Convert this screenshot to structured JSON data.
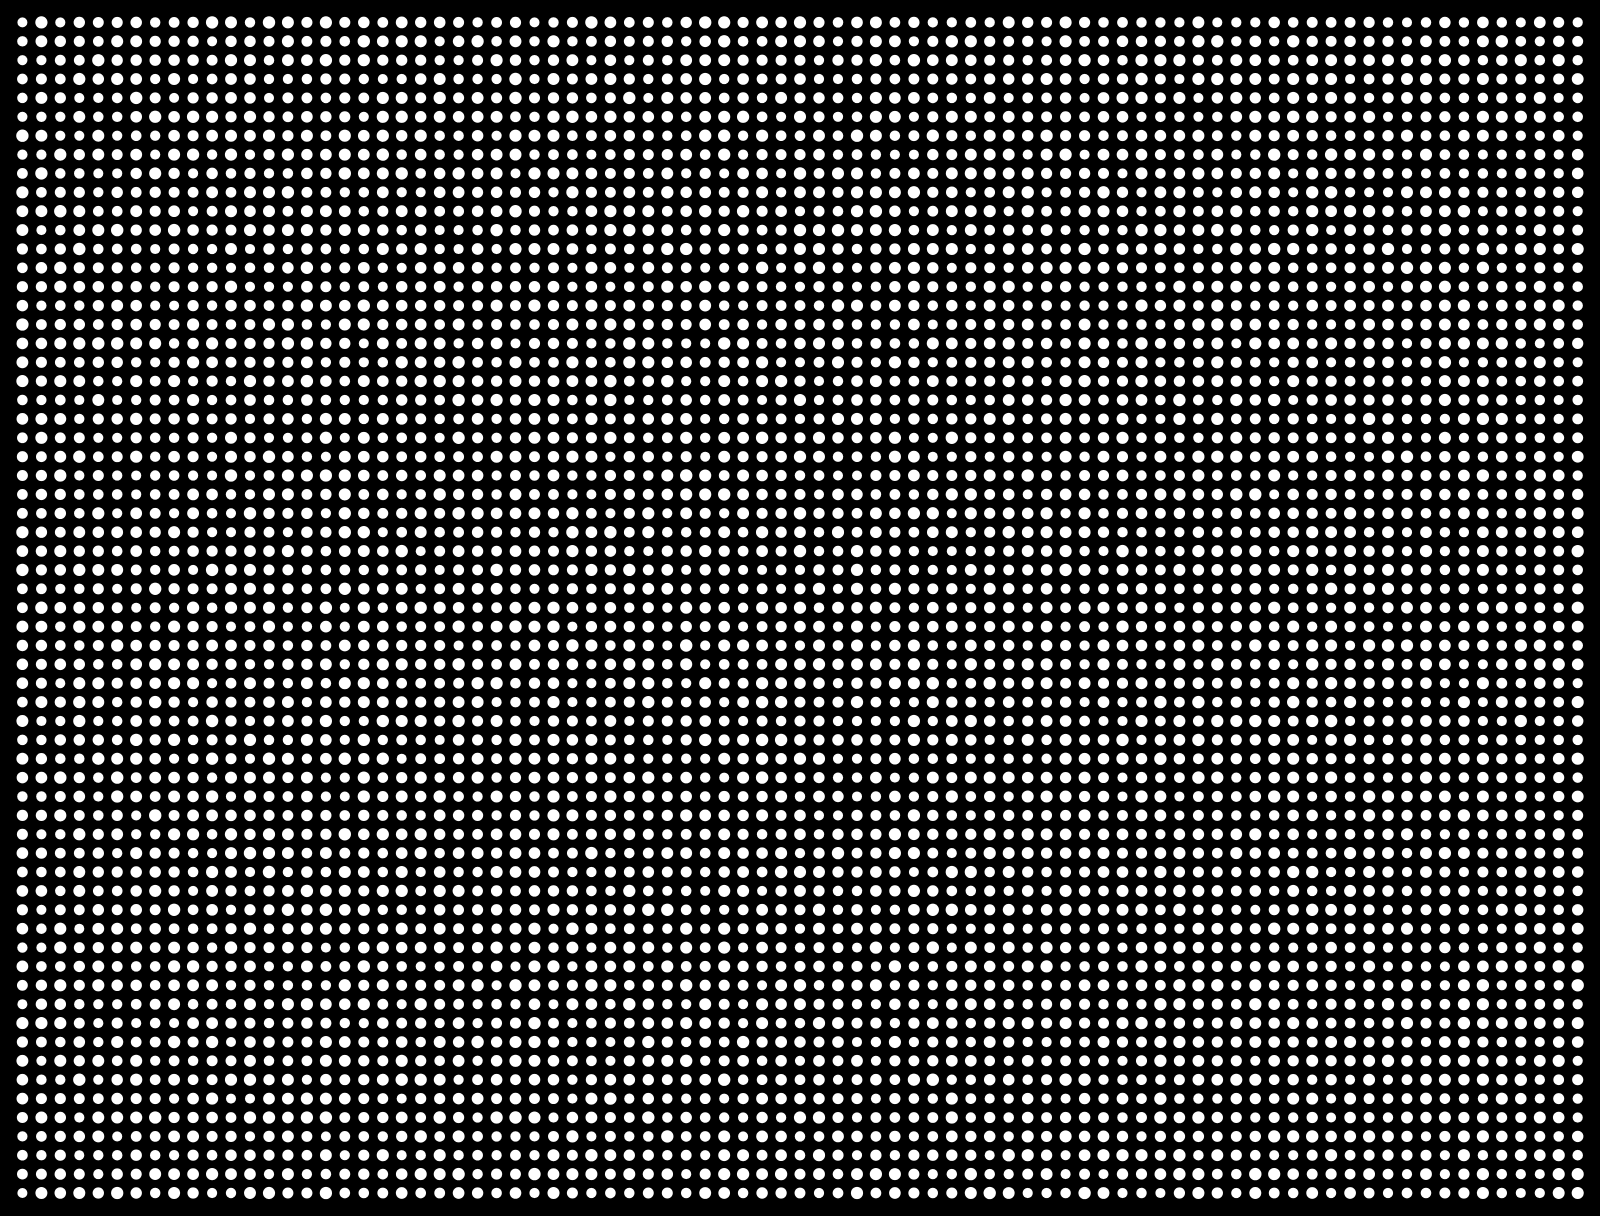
{
  "pattern": {
    "background_color": "#000000",
    "dot_color": "#ffffff",
    "columns": 83,
    "rows": 63
  }
}
